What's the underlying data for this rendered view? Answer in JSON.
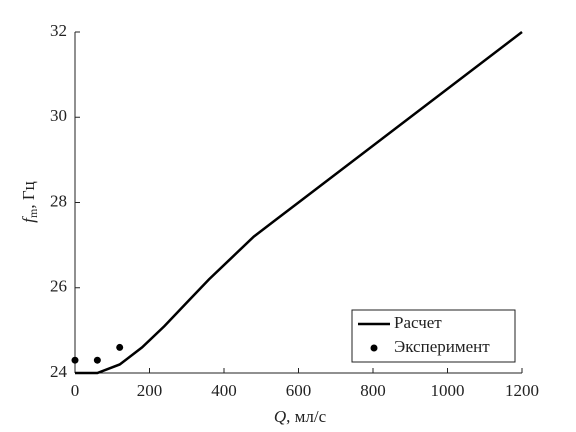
{
  "chart_data": {
    "type": "line",
    "x_label": {
      "italic": "Q",
      "rest": ", мл/с"
    },
    "y_label": {
      "italic": "f",
      "sub": "m",
      "rest": ", Гц"
    },
    "xlim": [
      0,
      1200
    ],
    "xticks": [
      0,
      200,
      400,
      600,
      800,
      1000,
      1200
    ],
    "ylim": [
      24,
      32
    ],
    "yticks": [
      24,
      26,
      28,
      30,
      32
    ],
    "legend": "lower right",
    "series": [
      {
        "name": "Расчет",
        "color": "#000000",
        "style": "line",
        "x": [
          0,
          60,
          120,
          180,
          240,
          300,
          360,
          420,
          480,
          540,
          600,
          1200
        ],
        "values": [
          24,
          24,
          24.2,
          24.6,
          25.1,
          25.65,
          26.2,
          26.7,
          27.2,
          27.6,
          28,
          32
        ]
      },
      {
        "name": "Эксперимент",
        "color": "#000000",
        "style": "scatter",
        "x": [
          0,
          60,
          120
        ],
        "values": [
          24.3,
          24.3,
          24.6
        ]
      }
    ]
  }
}
